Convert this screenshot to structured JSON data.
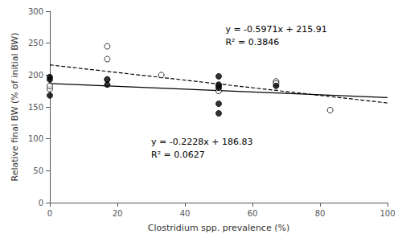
{
  "chart_data": {
    "type": "scatter",
    "xlabel": "Clostridium spp. prevalence (%)",
    "ylabel": "Relative final BW (% of initial BW)",
    "xlim": [
      0,
      100
    ],
    "ylim": [
      0,
      300
    ],
    "xticks": [
      0,
      20,
      40,
      60,
      80,
      100
    ],
    "yticks": [
      0,
      50,
      100,
      150,
      200,
      250,
      300
    ],
    "grid": false,
    "series": [
      {
        "type": "scatter",
        "marker": "circle_open",
        "color": "#000000",
        "x": [
          0,
          0,
          17,
          17,
          17,
          33,
          50,
          50,
          67,
          67,
          83
        ],
        "values": [
          178,
          183,
          245,
          225,
          193,
          200,
          183,
          175,
          190,
          187,
          145
        ]
      },
      {
        "type": "scatter",
        "marker": "circle",
        "color": "#000000",
        "x": [
          0,
          0,
          0,
          17,
          17,
          50,
          50,
          50,
          50,
          50,
          67
        ],
        "values": [
          197,
          193,
          168,
          193,
          185,
          198,
          185,
          155,
          140,
          180,
          183
        ]
      },
      {
        "type": "line",
        "line_style": "dashed",
        "color": "#000000",
        "x": [
          0,
          100
        ],
        "values": [
          215.91,
          156.2
        ],
        "annotations": [
          "y = -0.5971x + 215.91",
          "R² = 0.3846"
        ]
      },
      {
        "type": "line",
        "line_style": "solid",
        "color": "#000000",
        "x": [
          0,
          100
        ],
        "values": [
          186.83,
          164.55
        ],
        "annotations": [
          "y = -0.2228x + 186.83",
          "R² = 0.0627"
        ]
      }
    ]
  }
}
